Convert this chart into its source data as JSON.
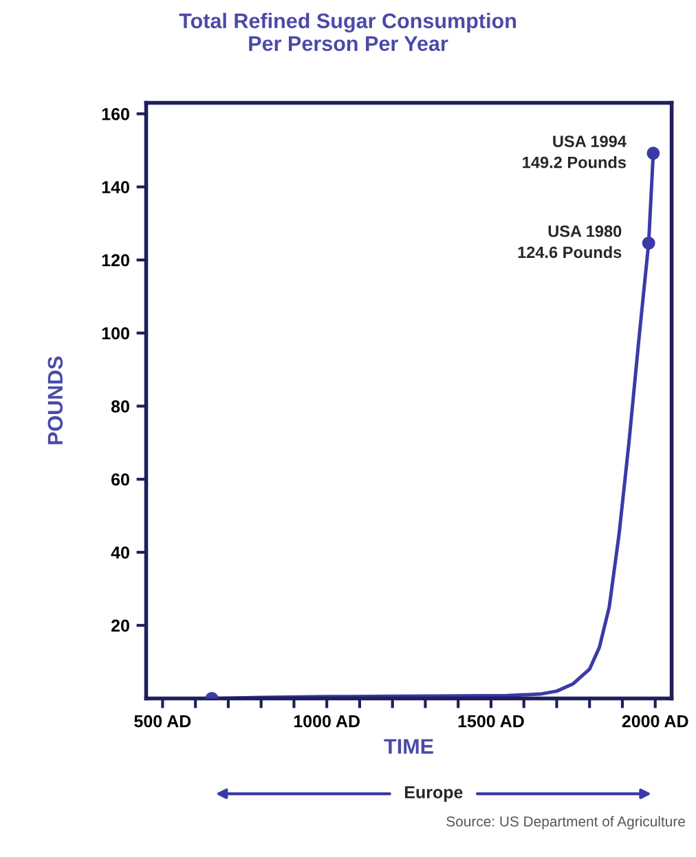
{
  "chart_data": {
    "type": "line",
    "title": "Total Refined Sugar Consumption\nPer Person Per Year",
    "xlabel": "TIME",
    "ylabel": "POUNDS",
    "series": [
      {
        "color": "#3a3aa8",
        "x": [
          650,
          800,
          1000,
          1200,
          1400,
          1550,
          1650,
          1700,
          1750,
          1800,
          1830,
          1860,
          1890,
          1920,
          1950,
          1980,
          1994
        ],
        "values": [
          0,
          0.3,
          0.5,
          0.6,
          0.7,
          0.8,
          1.2,
          2,
          4,
          8,
          14,
          25,
          45,
          70,
          98,
          124.6,
          149.2
        ]
      },
      {
        "type": "scatter",
        "color": "#3a3aa8",
        "marker": "circle",
        "x": [
          650,
          1980,
          1994
        ],
        "values": [
          0,
          124.6,
          149.2
        ]
      }
    ],
    "xlim": [
      450,
      2050
    ],
    "xticks": [
      {
        "value": 500,
        "label": "500 AD"
      },
      {
        "value": 600,
        "label": null
      },
      {
        "value": 700,
        "label": null
      },
      {
        "value": 800,
        "label": null
      },
      {
        "value": 900,
        "label": null
      },
      {
        "value": 1000,
        "label": "1000 AD"
      },
      {
        "value": 1100,
        "label": null
      },
      {
        "value": 1200,
        "label": null
      },
      {
        "value": 1300,
        "label": null
      },
      {
        "value": 1400,
        "label": null
      },
      {
        "value": 1500,
        "label": "1500 AD"
      },
      {
        "value": 1600,
        "label": null
      },
      {
        "value": 1700,
        "label": null
      },
      {
        "value": 1800,
        "label": null
      },
      {
        "value": 1900,
        "label": null
      },
      {
        "value": 2000,
        "label": "2000 AD"
      }
    ],
    "ylim": [
      0,
      163
    ],
    "yticks": [
      20,
      40,
      60,
      80,
      100,
      120,
      140,
      160
    ],
    "annotations": [
      {
        "text": "USA 1994\n149.2 Pounds",
        "x": 1994,
        "y": 149.2
      },
      {
        "text": "USA 1980\n124.6 Pounds",
        "x": 1980,
        "y": 124.6
      },
      "Europe",
      "Source: US Department of Agriculture"
    ],
    "grid": false
  }
}
